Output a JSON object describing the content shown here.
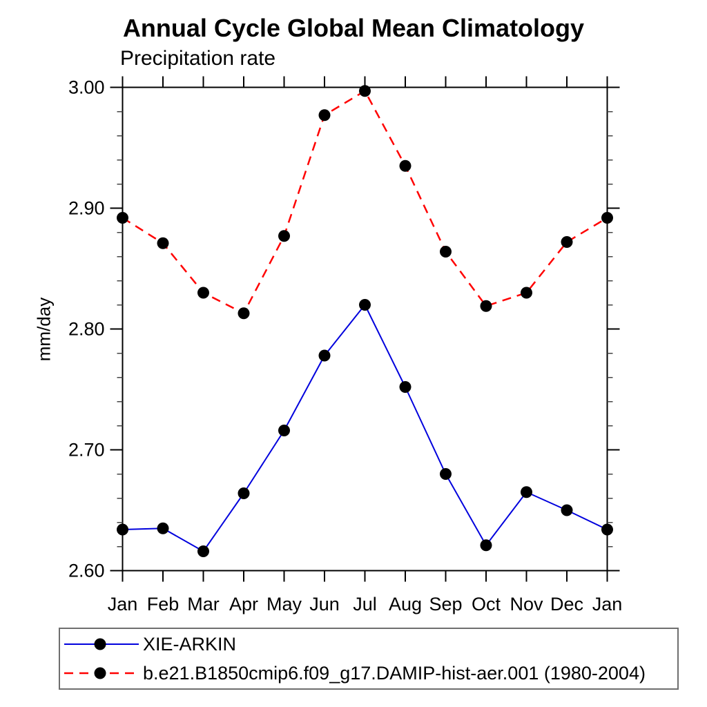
{
  "chart_data": {
    "type": "line",
    "title": "Annual Cycle Global Mean Climatology",
    "subtitle": "Precipitation rate",
    "ylabel": "mm/day",
    "xlabel": "",
    "categories": [
      "Jan",
      "Feb",
      "Mar",
      "Apr",
      "May",
      "Jun",
      "Jul",
      "Aug",
      "Sep",
      "Oct",
      "Nov",
      "Dec",
      "Jan"
    ],
    "series": [
      {
        "name": "XIE-ARKIN",
        "line_color": "#0000dd",
        "line_style": "solid",
        "marker": "filled-circle",
        "marker_color": "#000000",
        "values": [
          2.634,
          2.635,
          2.616,
          2.664,
          2.716,
          2.778,
          2.82,
          2.752,
          2.68,
          2.621,
          2.665,
          2.65,
          2.634
        ]
      },
      {
        "name": "b.e21.B1850cmip6.f09_g17.DAMIP-hist-aer.001 (1980-2004)",
        "line_color": "#ff0000",
        "line_style": "dashed",
        "marker": "filled-circle",
        "marker_color": "#000000",
        "values": [
          2.892,
          2.871,
          2.83,
          2.813,
          2.877,
          2.977,
          2.997,
          2.935,
          2.864,
          2.819,
          2.83,
          2.872,
          2.892
        ]
      }
    ],
    "ylim": [
      2.6,
      3.0
    ],
    "yticks_major": [
      2.6,
      2.7,
      2.8,
      2.9,
      3.0
    ],
    "ytick_labels": [
      "2.60",
      "2.70",
      "2.80",
      "2.90",
      "3.00"
    ],
    "y_minor_tick_step": 0.02,
    "grid": false,
    "legend_position": "bottom-box"
  },
  "legend": {
    "entries": [
      {
        "label": "XIE-ARKIN",
        "line_color": "#0000dd",
        "line_style": "solid",
        "marker_color": "#000000"
      },
      {
        "label": "b.e21.B1850cmip6.f09_g17.DAMIP-hist-aer.001 (1980-2004)",
        "line_color": "#ff0000",
        "line_style": "dashed",
        "marker_color": "#000000"
      }
    ]
  },
  "colors": {
    "background": "#ffffff",
    "axis": "#000000",
    "minor_tick": "#444444",
    "legend_border": "#6e6e6e",
    "series_observation": "#0000dd",
    "series_model": "#ff0000",
    "marker": "#000000"
  }
}
